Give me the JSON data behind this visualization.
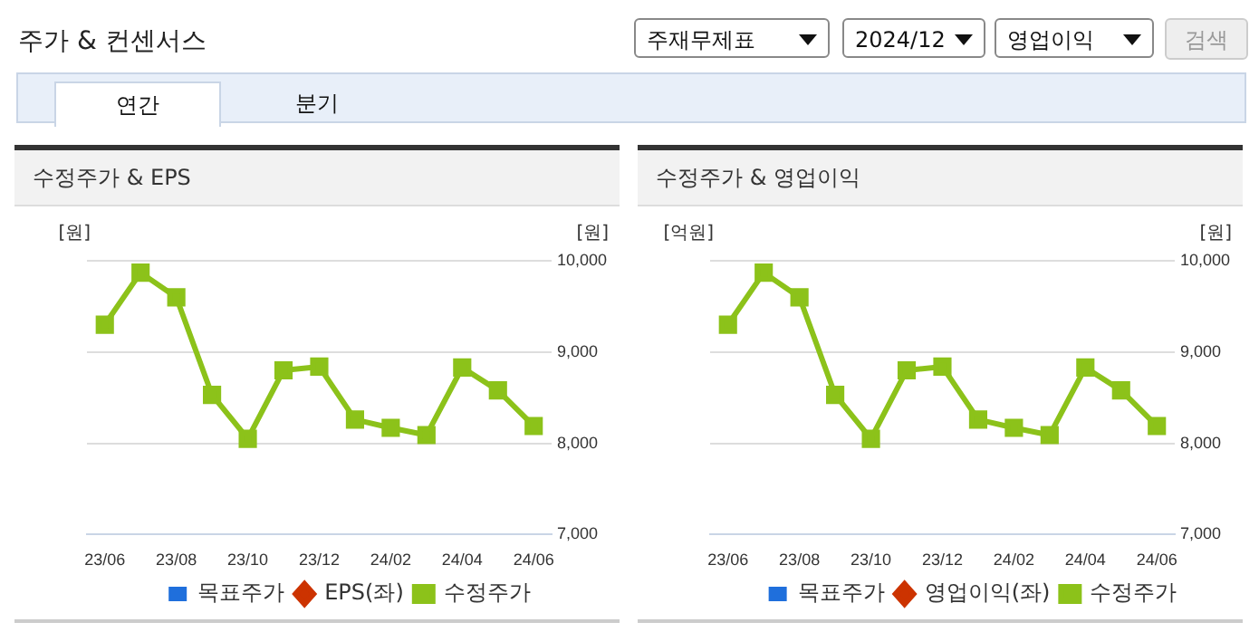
{
  "chart_data": [
    {
      "type": "other",
      "title": "주가 & 컨센서스",
      "annotations": [
        "주재무제표",
        "2024/12",
        "영업이익",
        "검색",
        "연간",
        "분기"
      ]
    },
    {
      "type": "line",
      "title": "수정주가 & EPS",
      "ylabel": "[원]",
      "y2label": "[원]",
      "categories": [
        "23/06",
        null,
        "23/08",
        null,
        "23/10",
        null,
        "23/12",
        null,
        "24/02",
        null,
        "24/04",
        null,
        "24/06"
      ],
      "series": [
        {
          "name": "목표주가",
          "type": "bar",
          "color": "#1f6fdc",
          "values": [
            null,
            null,
            null,
            null,
            null,
            null,
            null,
            null,
            null,
            null,
            null,
            null,
            null
          ]
        },
        {
          "name": "EPS(좌)",
          "type": "line",
          "marker": "diamond",
          "color": "#cc3300",
          "values": [
            null,
            null,
            null,
            null,
            null,
            null,
            null,
            null,
            null,
            null,
            null,
            null,
            null
          ]
        },
        {
          "name": "수정주가",
          "type": "line",
          "axis": "y2",
          "color": "#8cc21a",
          "values": [
            9300,
            9870,
            9600,
            8530,
            8050,
            8800,
            8840,
            8260,
            8170,
            8090,
            8830,
            8580,
            8190
          ]
        }
      ],
      "y2lim": [
        7000,
        10000
      ],
      "y2ticks": [
        {
          "value": 7000,
          "label": "7,000"
        },
        {
          "value": 8000,
          "label": "8,000"
        },
        {
          "value": 9000,
          "label": "9,000"
        },
        {
          "value": 10000,
          "label": "10,000"
        }
      ],
      "grid": "y",
      "legend": "bottom",
      "marker": "square",
      "line_style": "solid"
    },
    {
      "type": "line",
      "title": "수정주가 & 영업이익",
      "ylabel": "[억원]",
      "y2label": "[원]",
      "categories": [
        "23/06",
        null,
        "23/08",
        null,
        "23/10",
        null,
        "23/12",
        null,
        "24/02",
        null,
        "24/04",
        null,
        "24/06"
      ],
      "series": [
        {
          "name": "목표주가",
          "type": "bar",
          "color": "#1f6fdc",
          "values": [
            null,
            null,
            null,
            null,
            null,
            null,
            null,
            null,
            null,
            null,
            null,
            null,
            null
          ]
        },
        {
          "name": "영업이익(좌)",
          "type": "line",
          "marker": "diamond",
          "color": "#cc3300",
          "values": [
            null,
            null,
            null,
            null,
            null,
            null,
            null,
            null,
            null,
            null,
            null,
            null,
            null
          ]
        },
        {
          "name": "수정주가",
          "type": "line",
          "axis": "y2",
          "color": "#8cc21a",
          "values": [
            9300,
            9870,
            9600,
            8530,
            8050,
            8800,
            8840,
            8260,
            8170,
            8090,
            8830,
            8580,
            8190
          ]
        }
      ],
      "y2lim": [
        7000,
        10000
      ],
      "y2ticks": [
        {
          "value": 7000,
          "label": "7,000"
        },
        {
          "value": 8000,
          "label": "8,000"
        },
        {
          "value": 9000,
          "label": "9,000"
        },
        {
          "value": 10000,
          "label": "10,000"
        }
      ],
      "grid": "y",
      "legend": "bottom",
      "marker": "square",
      "line_style": "solid"
    }
  ]
}
